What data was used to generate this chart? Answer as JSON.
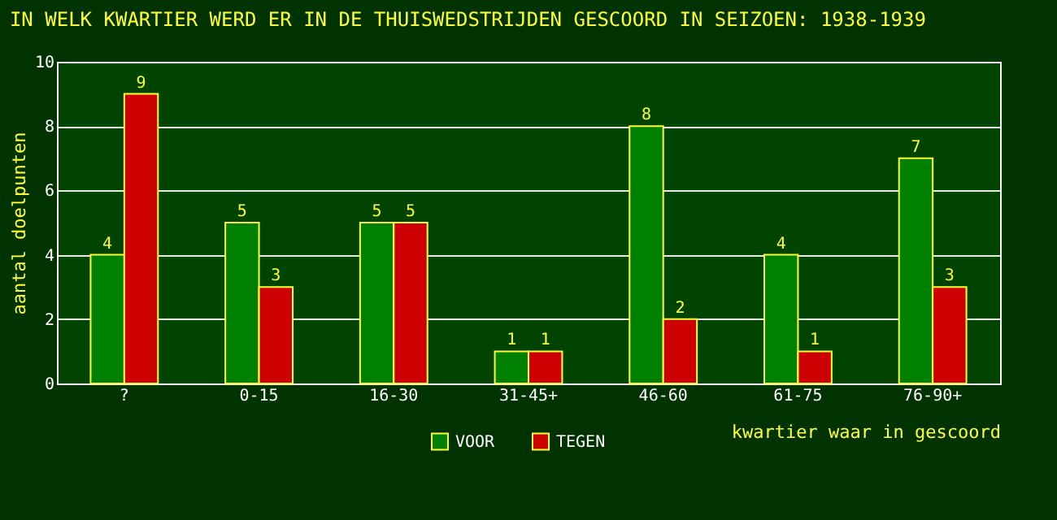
{
  "chart_data": {
    "type": "bar",
    "title": "IN WELK KWARTIER WERD ER IN DE THUISWEDSTRIJDEN GESCOORD IN SEIZOEN: 1938-1939",
    "xlabel": "kwartier waar in gescoord",
    "ylabel": "aantal doelpunten",
    "categories": [
      "?",
      "0-15",
      "16-30",
      "31-45+",
      "46-60",
      "61-75",
      "76-90+"
    ],
    "series": [
      {
        "name": "VOOR",
        "color": "#008000",
        "values": [
          4,
          5,
          5,
          1,
          8,
          4,
          7
        ]
      },
      {
        "name": "TEGEN",
        "color": "#cc0000",
        "values": [
          9,
          3,
          5,
          1,
          2,
          1,
          3
        ]
      }
    ],
    "ylim": [
      0,
      10
    ],
    "yticks": [
      0,
      2,
      4,
      6,
      8,
      10
    ],
    "grid": "y",
    "legend": "bottom",
    "data_labels": true
  }
}
